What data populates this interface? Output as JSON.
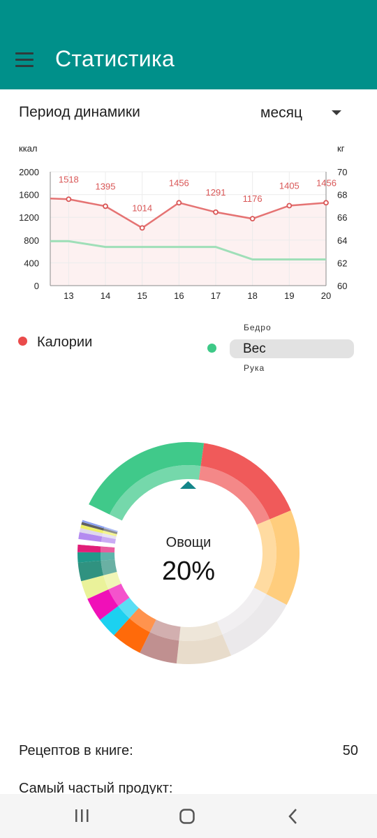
{
  "app_bar": {
    "title": "Статистика",
    "menu_icon": "hamburger-menu-icon"
  },
  "period": {
    "label": "Период динамики",
    "value": "месяц"
  },
  "chart_data": {
    "type": "line",
    "x": [
      13,
      14,
      15,
      16,
      17,
      18,
      19,
      20
    ],
    "xlim": [
      12.5,
      20
    ],
    "left_axis": {
      "label": "ккал",
      "ticks": [
        "2000",
        "1600",
        "1200",
        "800",
        "400",
        "0"
      ],
      "range": [
        0,
        2000
      ]
    },
    "right_axis": {
      "label": "кг",
      "ticks": [
        "70",
        "68",
        "66",
        "64",
        "62",
        "60"
      ],
      "range": [
        60,
        70
      ]
    },
    "series": [
      {
        "name": "Калории",
        "axis": "left",
        "color": "#e57373",
        "x": [
          12.5,
          13,
          14,
          15,
          16,
          17,
          18,
          19,
          20
        ],
        "values": [
          1530,
          1518,
          1395,
          1014,
          1456,
          1291,
          1176,
          1405,
          1456
        ],
        "labels": [
          "",
          "1518",
          "1395",
          "1014",
          "1456",
          "1291",
          "1176",
          "1405",
          "1456"
        ]
      },
      {
        "name": "Вес",
        "axis": "right",
        "color": "#9fdfb8",
        "x": [
          12.5,
          13,
          14,
          15,
          16,
          17,
          18,
          19,
          20
        ],
        "values": [
          63.9,
          63.9,
          63.4,
          63.4,
          63.4,
          63.4,
          62.3,
          62.3,
          62.3
        ]
      }
    ]
  },
  "legend": {
    "calories": {
      "label": "Калории",
      "color": "#ea4b4b"
    },
    "weight": {
      "color": "#3ec987",
      "picker_above": "Бедро",
      "picker_selected": "Вес",
      "picker_below": "Рука"
    }
  },
  "donut": {
    "center_label": "Овощи",
    "center_percent": "20%",
    "pointer_color": "#14868a",
    "segments": [
      {
        "value": 20,
        "color": "#40c98a"
      },
      {
        "value": 16.5,
        "color": "#f05a5a"
      },
      {
        "value": 14,
        "color": "#ffcd7d"
      },
      {
        "value": 11,
        "color": "#ebe9eb"
      },
      {
        "value": 8,
        "color": "#e8dccb"
      },
      {
        "value": 5.5,
        "color": "#c09090"
      },
      {
        "value": 4.5,
        "color": "#ff6a0a"
      },
      {
        "value": 3,
        "color": "#1cd1f0"
      },
      {
        "value": 3.5,
        "color": "#f010b8"
      },
      {
        "value": 2.7,
        "color": "#eaf29a"
      },
      {
        "value": 2.7,
        "color": "#309280"
      },
      {
        "value": 1.5,
        "color": "#20998a"
      },
      {
        "value": 1.1,
        "color": "#e01e78"
      },
      {
        "value": 0.8,
        "color": "#ffffff"
      },
      {
        "value": 1,
        "color": "#b48af0"
      },
      {
        "value": 0.6,
        "color": "#dfd7ef"
      },
      {
        "value": 0.5,
        "color": "#eef06a"
      },
      {
        "value": 0.4,
        "color": "#606060"
      },
      {
        "value": 0.3,
        "color": "#8aa0f0"
      },
      {
        "value": 2.4,
        "color": "#ffffff"
      }
    ]
  },
  "stats": [
    {
      "label": "Рецептов в книге:",
      "value": "50"
    },
    {
      "label": "Самый частый продукт:",
      "value": ""
    }
  ],
  "nav_bar": {
    "recents_icon": "recent-apps-icon",
    "home_icon": "home-icon",
    "back_icon": "back-icon"
  }
}
